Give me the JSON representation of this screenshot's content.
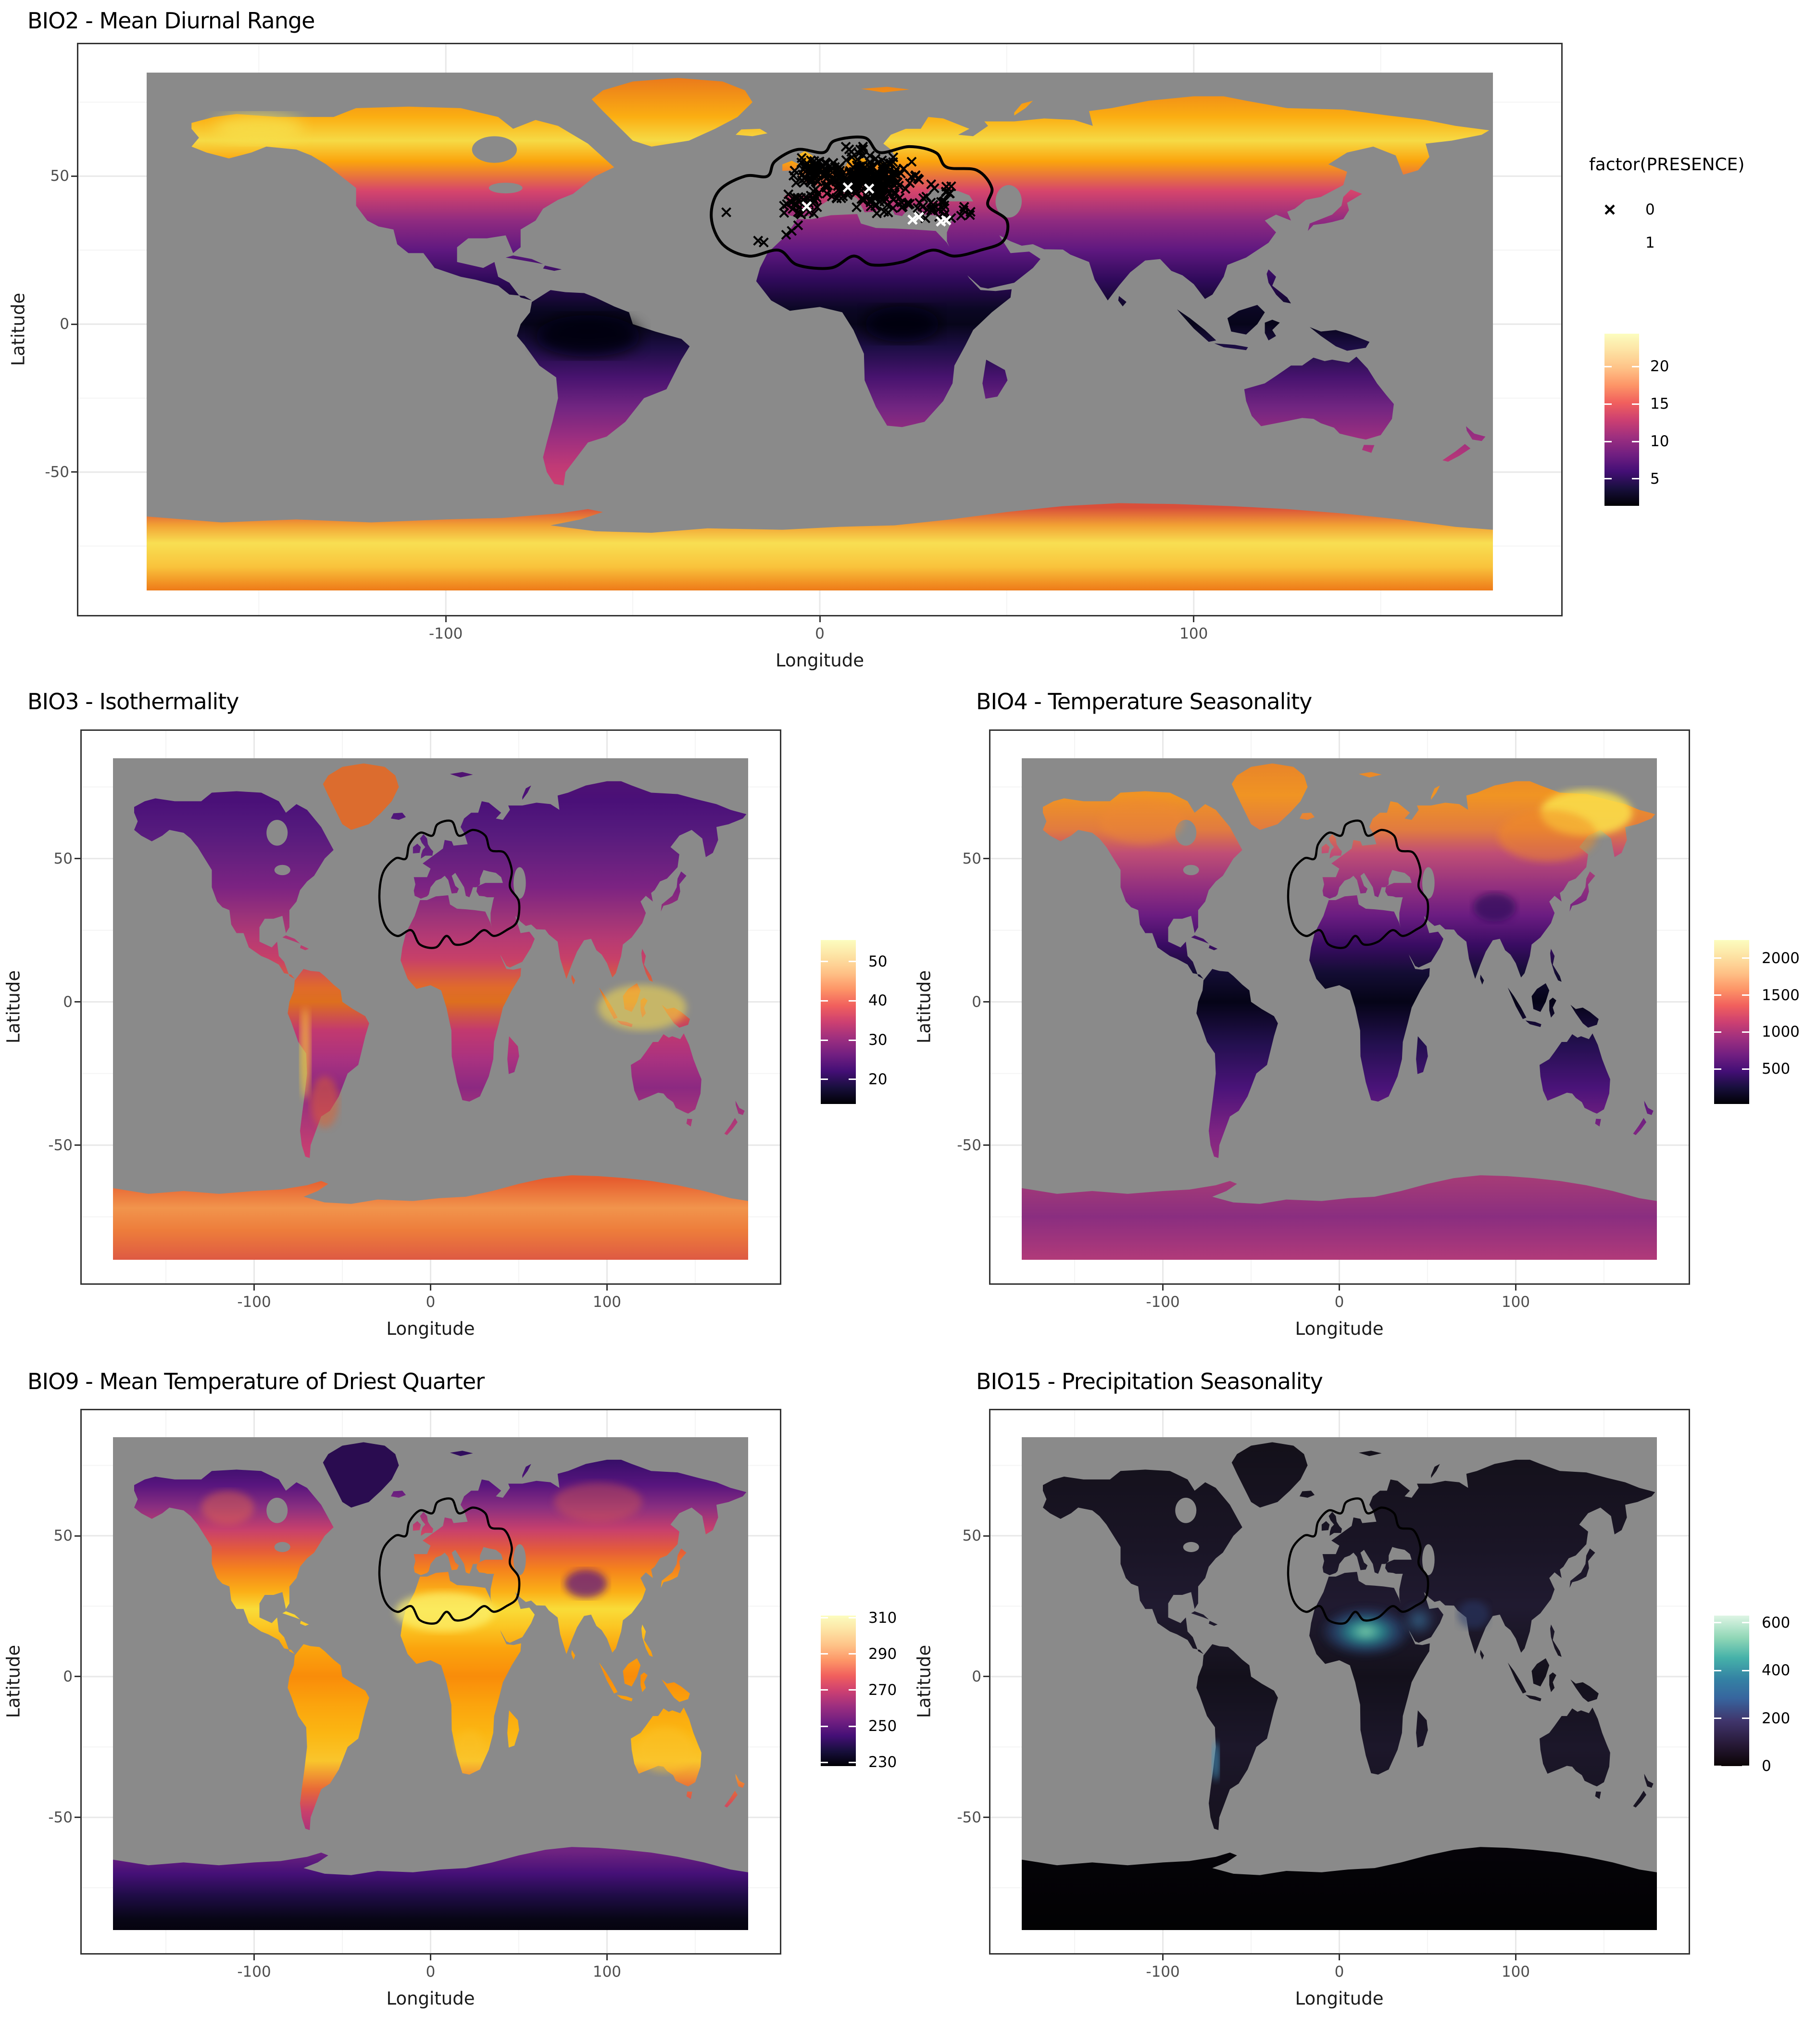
{
  "figure": {
    "background": "#FFFFFF",
    "ocean_color": "#8A8A8A",
    "panel_style": {
      "border_color": "#333333",
      "grid_major_color": "#E8E8E8",
      "grid_minor_color": "#F4F4F4",
      "axis_text_color": "#4D4D4D",
      "background": "#FFFFFF"
    }
  },
  "chart_data": [
    {
      "id": "bio2",
      "type": "heatmap",
      "title": "BIO2 - Mean Diurnal Range",
      "xlabel": "Longitude",
      "ylabel": "Latitude",
      "x_tick_labels": [
        "-100",
        "0",
        "100"
      ],
      "x_tick_values": [
        -100,
        0,
        100
      ],
      "y_tick_labels": [
        "50",
        "0",
        "-50"
      ],
      "y_tick_values": [
        50,
        0,
        -50
      ],
      "x_range_degrees": [
        -180,
        180
      ],
      "y_range_degrees": [
        -90,
        85
      ],
      "colormap": "magma",
      "colorbar": {
        "tick_labels": [
          "20",
          "15",
          "10",
          "5"
        ],
        "tick_values": [
          20,
          15,
          10,
          5
        ],
        "domain": [
          1.4,
          24.4
        ]
      },
      "points_legend": {
        "title": "factor(PRESENCE)",
        "items": [
          {
            "label": "0",
            "marker": "cross",
            "color": "#000000"
          },
          {
            "label": "1",
            "marker": "cross",
            "color": "#FFFFFF"
          }
        ]
      },
      "study_region_outline": {
        "color": "#000000",
        "region": "Western Palearctic: Europe, Mediterranean and North Africa"
      },
      "pattern_summary": "High diurnal range (orange/yellow) at high northern latitudes and Antarctica; near-zero (black) in humid tropics; purple mid-latitudes; dense black absence crosses and sparse white presence crosses over Europe."
    },
    {
      "id": "bio3",
      "type": "heatmap",
      "title": "BIO3 - Isothermality",
      "xlabel": "Longitude",
      "ylabel": "Latitude",
      "x_tick_labels": [
        "-100",
        "0",
        "100"
      ],
      "x_tick_values": [
        -100,
        0,
        100
      ],
      "y_tick_labels": [
        "50",
        "0",
        "-50"
      ],
      "y_tick_values": [
        50,
        0,
        -50
      ],
      "x_range_degrees": [
        -180,
        180
      ],
      "y_range_degrees": [
        -90,
        85
      ],
      "colormap": "magma",
      "colorbar": {
        "tick_labels": [
          "50",
          "40",
          "30",
          "20"
        ],
        "tick_values": [
          50,
          40,
          30,
          20
        ],
        "domain": [
          13.7,
          55.5
        ]
      },
      "study_region_outline": {
        "color": "#000000",
        "region": "Western Palearctic: Europe, Mediterranean and North Africa"
      },
      "pattern_summary": "High isothermality (orange/yellow) in the tropics, Andes, Indonesia and Greenland; dark purple across northern mid/high latitudes."
    },
    {
      "id": "bio4",
      "type": "heatmap",
      "title": "BIO4 - Temperature Seasonality",
      "xlabel": "Longitude",
      "ylabel": "Latitude",
      "x_tick_labels": [
        "-100",
        "0",
        "100"
      ],
      "x_tick_values": [
        -100,
        0,
        100
      ],
      "y_tick_labels": [
        "50",
        "0",
        "-50"
      ],
      "y_tick_values": [
        50,
        0,
        -50
      ],
      "x_range_degrees": [
        -180,
        180
      ],
      "y_range_degrees": [
        -90,
        85
      ],
      "colormap": "magma",
      "colorbar": {
        "tick_labels": [
          "2000",
          "1500",
          "1000",
          "500"
        ],
        "tick_values": [
          2000,
          1500,
          1000,
          500
        ],
        "domain": [
          26,
          2247
        ]
      },
      "study_region_outline": {
        "color": "#000000",
        "region": "Western Palearctic: Europe, Mediterranean and North Africa"
      },
      "pattern_summary": "Strong seasonality (yellow/orange) in NE Siberia and northern North America; near-zero (black/dark purple) throughout the tropics; intermediate purple in southern continents and Antarctica."
    },
    {
      "id": "bio9",
      "type": "heatmap",
      "title": "BIO9 - Mean Temperature of Driest Quarter",
      "xlabel": "Longitude",
      "ylabel": "Latitude",
      "x_tick_labels": [
        "-100",
        "0",
        "100"
      ],
      "x_tick_values": [
        -100,
        0,
        100
      ],
      "y_tick_labels": [
        "50",
        "0",
        "-50"
      ],
      "y_tick_values": [
        50,
        0,
        -50
      ],
      "x_range_degrees": [
        -180,
        180
      ],
      "y_range_degrees": [
        -90,
        85
      ],
      "colormap": "magma",
      "colorbar": {
        "tick_labels": [
          "310",
          "290",
          "270",
          "250",
          "230"
        ],
        "tick_values": [
          310,
          290,
          270,
          250,
          230
        ],
        "domain": [
          227.9,
          311.3
        ]
      },
      "study_region_outline": {
        "color": "#000000",
        "region": "Western Palearctic: Europe, Mediterranean and North Africa"
      },
      "pattern_summary": "Warm driest-quarter temperatures (yellow) across the Sahara, tropics and Australia; cold (dark purple/black) in NE Canada, Greenland, Siberia, Tibet and Antarctica."
    },
    {
      "id": "bio15",
      "type": "heatmap",
      "title": "BIO15 - Precipitation Seasonality",
      "xlabel": "Longitude",
      "ylabel": "Latitude",
      "x_tick_labels": [
        "-100",
        "0",
        "100"
      ],
      "x_tick_values": [
        -100,
        0,
        100
      ],
      "y_tick_labels": [
        "50",
        "0",
        "-50"
      ],
      "y_tick_values": [
        50,
        0,
        -50
      ],
      "x_range_degrees": [
        -180,
        180
      ],
      "y_range_degrees": [
        -90,
        85
      ],
      "colormap": "mako",
      "colorbar": {
        "tick_labels": [
          "600",
          "400",
          "200",
          "0"
        ],
        "tick_values": [
          600,
          400,
          200,
          0
        ],
        "domain": [
          0,
          630
        ]
      },
      "study_region_outline": {
        "color": "#000000",
        "region": "Western Palearctic: Europe, Mediterranean and North Africa"
      },
      "pattern_summary": "Very low precipitation seasonality (near-black) over most land; bright teal/green maximum over the Sahara-Sahel belt and Arabia; small coastal maximum along Chile."
    }
  ]
}
